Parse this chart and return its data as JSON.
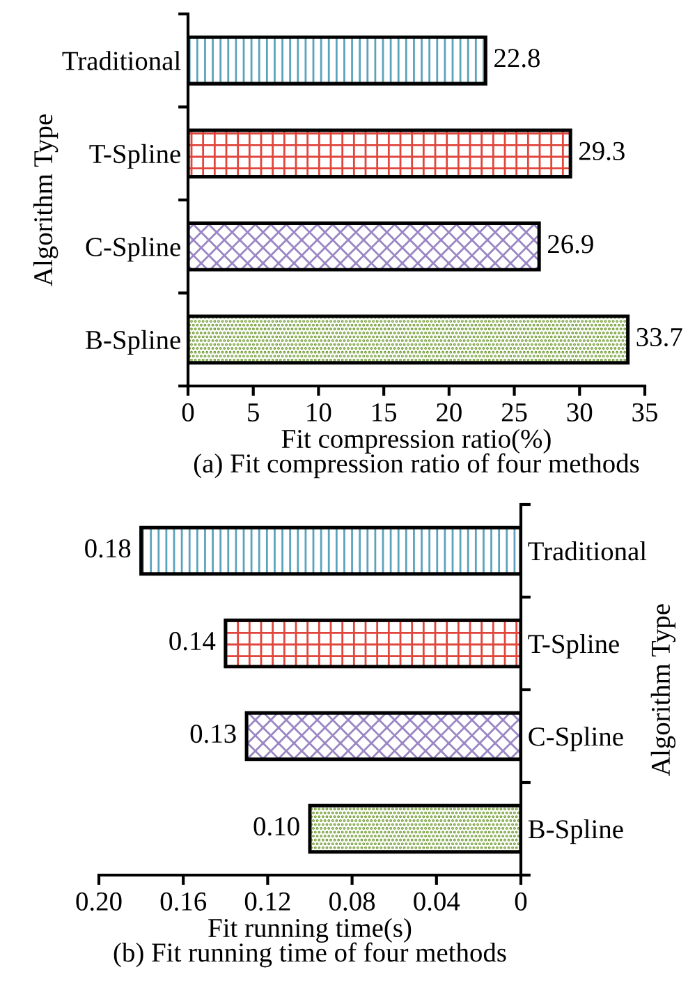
{
  "chart_data": [
    {
      "type": "bar",
      "orientation": "horizontal",
      "categories": [
        "Traditional",
        "T-Spline",
        "C-Spline",
        "B-Spline"
      ],
      "values": [
        22.8,
        29.3,
        26.9,
        33.7
      ],
      "colors": [
        "#5ba3bd",
        "#e0463c",
        "#9a86c4",
        "#6e9a2f"
      ],
      "xlabel": "Fit compression ratio(%)",
      "ylabel": "Algorithm Type",
      "xlim": [
        0,
        35
      ],
      "xticks": [
        0,
        5,
        10,
        15,
        20,
        25,
        30,
        35
      ],
      "data_labels": true,
      "annotations": [
        "(a) Fit compression ratio of four methods"
      ]
    },
    {
      "type": "bar",
      "orientation": "horizontal",
      "categories": [
        "Traditional",
        "T-Spline",
        "C-Spline",
        "B-Spline"
      ],
      "values": [
        0.18,
        0.14,
        0.13,
        0.1
      ],
      "value_labels": [
        "0.18",
        "0.14",
        "0.13",
        "0.10"
      ],
      "colors": [
        "#5ba3bd",
        "#e0463c",
        "#9a86c4",
        "#6e9a2f"
      ],
      "xlabel": "Fit running time(s)",
      "ylabel": "Algorithm Type",
      "xlim": [
        0.2,
        0
      ],
      "xticks": [
        {
          "value": 0.2,
          "label": "0.20"
        },
        0.16,
        0.12,
        0.08,
        0.04,
        0
      ],
      "annotations": [
        "(b) Fit running time of four methods"
      ]
    }
  ]
}
